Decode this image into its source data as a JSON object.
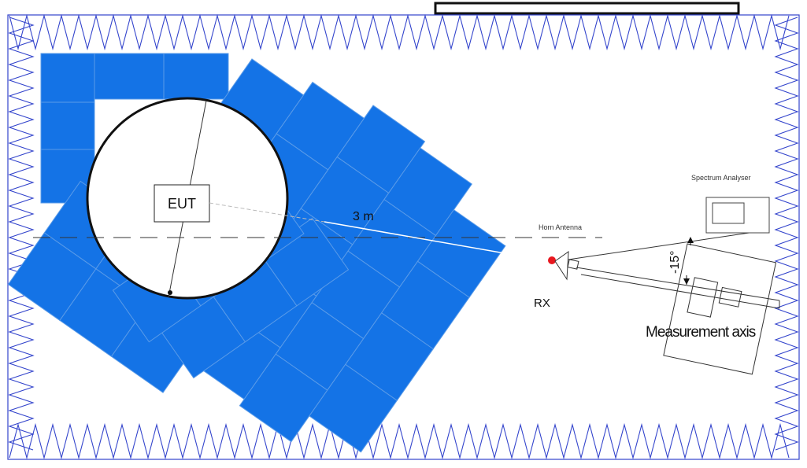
{
  "diagram": {
    "labels": {
      "eut": "EUT",
      "distance": "3 m",
      "spectrum_analyser": "Spectrum Analyser",
      "horn_antenna": "Horn Antenna",
      "rx": "RX",
      "angle": "-15°",
      "measurement_axis": "Measurement axis"
    },
    "colors": {
      "absorber": "#1473E6",
      "wall": "#3344cc",
      "rx_point": "#e8171f",
      "line": "#222222"
    },
    "icons": [
      "turntable-icon",
      "horn-antenna-icon",
      "spectrum-analyser-icon",
      "antenna-mast-icon"
    ]
  }
}
